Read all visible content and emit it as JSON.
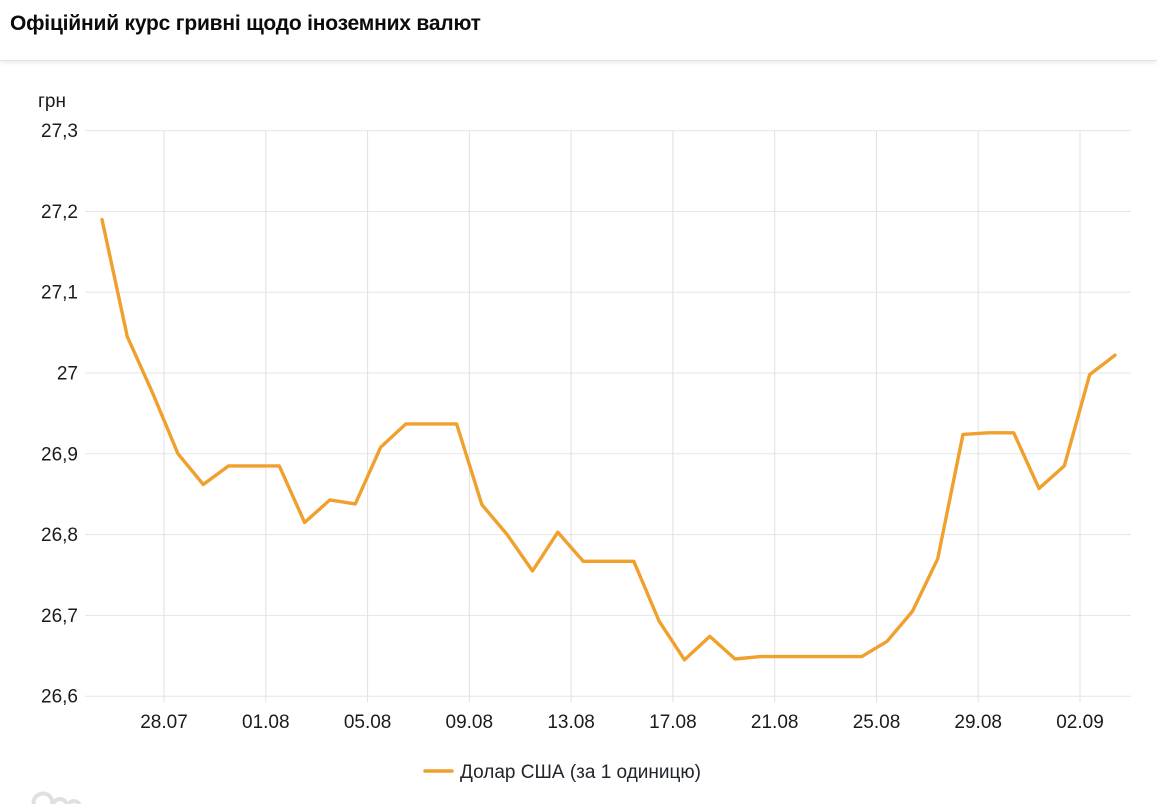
{
  "page": {
    "title": "Офіційний курс гривні щодо іноземних валют"
  },
  "chart": {
    "unit_label": "грн"
  },
  "chart_data": {
    "type": "line",
    "title": "Офіційний курс гривні щодо іноземних валют",
    "xlabel": "",
    "ylabel": "грн",
    "ylim": [
      26.6,
      27.3
    ],
    "grid": true,
    "legend_position": "bottom",
    "y_ticks": [
      27.3,
      27.2,
      27.1,
      27.0,
      26.9,
      26.8,
      26.7,
      26.6
    ],
    "y_tick_labels": [
      "27,3",
      "27,2",
      "27,1",
      "27",
      "26,9",
      "26,8",
      "26,7",
      "26,6"
    ],
    "x_tick_labels": [
      "28.07",
      "01.08",
      "05.08",
      "09.08",
      "13.08",
      "17.08",
      "21.08",
      "25.08",
      "29.08",
      "02.09"
    ],
    "series": [
      {
        "name": "Долар США (за 1 одиницю)",
        "color": "#EFA02D",
        "x": [
          "26.07",
          "27.07",
          "28.07",
          "29.07",
          "30.07",
          "31.07",
          "01.08",
          "02.08",
          "03.08",
          "04.08",
          "05.08",
          "06.08",
          "07.08",
          "08.08",
          "09.08",
          "10.08",
          "11.08",
          "12.08",
          "13.08",
          "14.08",
          "15.08",
          "16.08",
          "17.08",
          "18.08",
          "19.08",
          "20.08",
          "21.08",
          "22.08",
          "23.08",
          "24.08",
          "25.08",
          "26.08",
          "27.08",
          "28.08",
          "29.08",
          "30.08",
          "31.08",
          "01.09",
          "02.09",
          "03.09",
          "04.09"
        ],
        "values": [
          27.19,
          27.045,
          26.975,
          26.9,
          26.862,
          26.885,
          26.885,
          26.885,
          26.815,
          26.843,
          26.838,
          26.908,
          26.937,
          26.937,
          26.937,
          26.837,
          26.8,
          26.755,
          26.803,
          26.767,
          26.767,
          26.767,
          26.693,
          26.645,
          26.674,
          26.646,
          26.649,
          26.649,
          26.649,
          26.649,
          26.649,
          26.668,
          26.705,
          26.77,
          26.924,
          26.926,
          26.926,
          26.857,
          26.885,
          26.998,
          27.022
        ]
      }
    ]
  }
}
